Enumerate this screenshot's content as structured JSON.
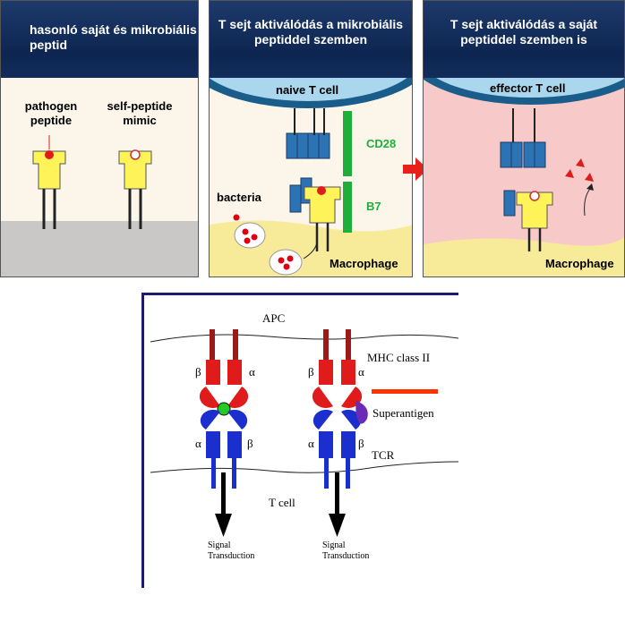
{
  "panels": [
    {
      "title": "hasonló saját és mikrobiális peptid",
      "labels": {
        "pathogen": "pathogen peptide",
        "self": "self-peptide mimic"
      }
    },
    {
      "title": "T sejt aktiválódás a mikrobiális peptiddel szemben",
      "labels": {
        "cell": "naive T cell",
        "bacteria": "bacteria",
        "macrophage": "Macrophage",
        "cd28": "CD28",
        "b7": "B7"
      }
    },
    {
      "title": "T sejt aktiválódás a saját peptiddel szemben is",
      "labels": {
        "cell": "effector T cell",
        "macrophage": "Macrophage"
      }
    }
  ],
  "diagram": {
    "apc": "APC",
    "mhc": "MHC class II",
    "superantigen": "Superantigen",
    "tcr": "TCR",
    "tcell": "T cell",
    "signal1": "Signal",
    "signal2": "Transduction",
    "beta": "β",
    "alpha": "α"
  },
  "colors": {
    "header": "#0d2550",
    "mhc": "#e01b1b",
    "tcr": "#1b2fcf",
    "green_bar": "#1fae3a",
    "peptide_green": "#22cc22",
    "superantigen": "#6b2bb5",
    "macrophage": "#f7eb9a",
    "effector_bg": "#f7c9c9"
  }
}
